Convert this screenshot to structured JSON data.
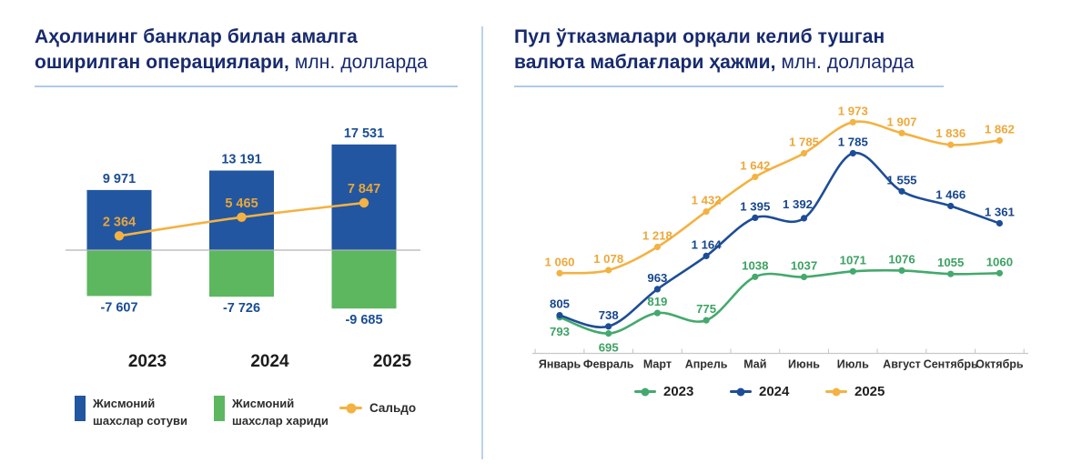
{
  "left_panel": {
    "title": {
      "line1": "Аҳолининг банклар билан амалга",
      "line2_bold": "оширилган операциялари,",
      "line2_rest": " млн. долларда"
    }
  },
  "right_panel": {
    "title": {
      "line1": "Пул ўтказмалари орқали келиб тушган",
      "line2_bold": "валюта маблағлари ҳажми,",
      "line2_rest": " млн. долларда"
    }
  },
  "chart_data": [
    {
      "id": "bank-operations",
      "type": "bar",
      "title": "Аҳолининг банклар билан амалга оширилган операциялари, млн. долларда",
      "categories": [
        "2023",
        "2024",
        "2025"
      ],
      "category_color": "#1c1c1c",
      "series": [
        {
          "name": "Жисмоний шахслар сотуви",
          "kind": "bar",
          "color": "#2256a1",
          "label_color": "#1a4d94",
          "values": [
            9971,
            13191,
            17531
          ],
          "labels": [
            "9 971",
            "13 191",
            "17 531"
          ]
        },
        {
          "name": "Жисмоний шахслар хариди",
          "kind": "bar",
          "color": "#5cb75f",
          "label_color": "#1a4d94",
          "values": [
            -7607,
            -7726,
            -9685
          ],
          "labels": [
            "-7 607",
            "-7 726",
            "-9 685"
          ]
        },
        {
          "name": "Сальдо",
          "kind": "line",
          "color": "#f3b242",
          "label_color": "#e9a63a",
          "values": [
            2364,
            5465,
            7847
          ],
          "labels": [
            "2 364",
            "5 465",
            "7 847"
          ]
        }
      ],
      "zero_line_color": "#b3b3b3",
      "legend_position": "bottom"
    },
    {
      "id": "money-transfers",
      "type": "line",
      "title": "Пул ўтказмалари орқали келиб тушган валюта маблағлари ҳажми, млн. долларда",
      "categories": [
        "Январь",
        "Февраль",
        "Март",
        "Апрель",
        "Май",
        "Июнь",
        "Июль",
        "Август",
        "Сентябрь",
        "Октябрь"
      ],
      "category_color": "#2e2e2e",
      "series": [
        {
          "name": "2023",
          "color": "#44a96d",
          "label_color": "#3da263",
          "values": [
            793,
            695,
            819,
            775,
            1038,
            1037,
            1071,
            1076,
            1055,
            1060
          ],
          "labels": [
            "793",
            "695",
            "819",
            "775",
            "1038",
            "1037",
            "1071",
            "1076",
            "1055",
            "1060"
          ]
        },
        {
          "name": "2024",
          "color": "#1d4d97",
          "label_color": "#17468c",
          "values": [
            805,
            738,
            963,
            1164,
            1395,
            1392,
            1785,
            1555,
            1466,
            1361
          ],
          "labels": [
            "805",
            "738",
            "963",
            "1 164",
            "1 395",
            "1 392",
            "1 785",
            "1 555",
            "1 466",
            "1 361"
          ]
        },
        {
          "name": "2025",
          "color": "#f3b242",
          "label_color": "#eda83a",
          "values": [
            1060,
            1078,
            1218,
            1432,
            1642,
            1785,
            1973,
            1907,
            1836,
            1862
          ],
          "labels": [
            "1 060",
            "1 078",
            "1 218",
            "1 432",
            "1 642",
            "1 785",
            "1 973",
            "1 907",
            "1 836",
            "1 862"
          ]
        }
      ],
      "ylim": [
        560,
        2060
      ],
      "grid": false,
      "axis_color": "#c9c9c9",
      "legend_position": "bottom"
    }
  ]
}
